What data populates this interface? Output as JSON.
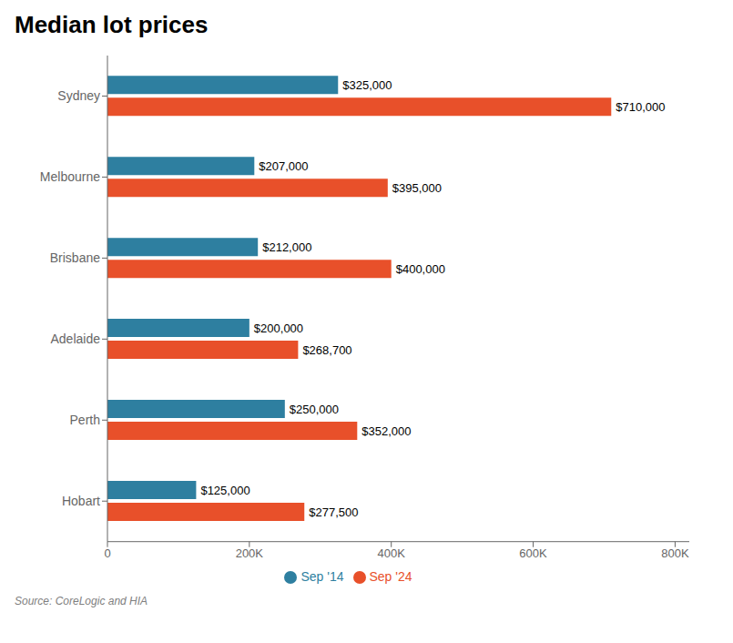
{
  "chart_data": {
    "type": "bar",
    "orientation": "horizontal",
    "title": "Median lot prices",
    "categories": [
      "Sydney",
      "Melbourne",
      "Brisbane",
      "Adelaide",
      "Perth",
      "Hobart"
    ],
    "series": [
      {
        "name": "Sep '14",
        "color": "#2e7fa0",
        "values": [
          325000,
          207000,
          212000,
          200000,
          250000,
          125000
        ],
        "value_labels": [
          "$325,000",
          "$207,000",
          "$212,000",
          "$200,000",
          "$250,000",
          "$125,000"
        ]
      },
      {
        "name": "Sep '24",
        "color": "#e8502a",
        "values": [
          710000,
          395000,
          400000,
          268700,
          352000,
          277500
        ],
        "value_labels": [
          "$710,000",
          "$395,000",
          "$400,000",
          "$268,700",
          "$352,000",
          "$277,500"
        ]
      }
    ],
    "xlim": [
      0,
      820000
    ],
    "xticks": [
      0,
      {
        "value": 200000,
        "label": "200K"
      },
      {
        "value": 400000,
        "label": "400K"
      },
      {
        "value": 600000,
        "label": "600K"
      },
      {
        "value": 800000,
        "label": "800K"
      }
    ],
    "data_labels": true,
    "legend": "bottom",
    "grid": false,
    "annotations": [
      "Source: CoreLogic and HIA"
    ]
  }
}
